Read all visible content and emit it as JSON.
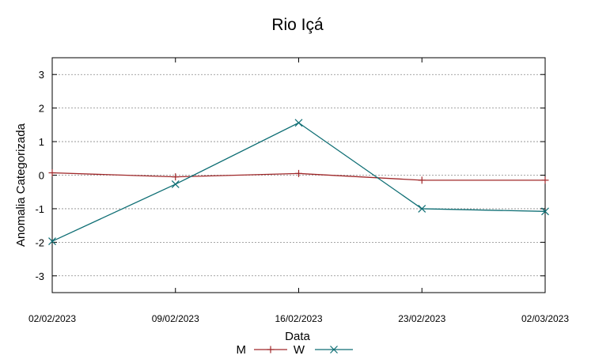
{
  "chart_data": {
    "type": "line",
    "title": "Rio Içá",
    "xlabel": "Data",
    "ylabel": "Anomalia Categorizada",
    "categories": [
      "02/02/2023",
      "09/02/2023",
      "16/02/2023",
      "23/02/2023",
      "02/03/2023"
    ],
    "ylim": [
      -3.5,
      3.5
    ],
    "yticks": [
      "3",
      "2",
      "1",
      "0",
      "-1",
      "-2",
      "-3"
    ],
    "grid": true,
    "legend_position": "bottom",
    "series": [
      {
        "name": "M",
        "values": [
          0.07,
          -0.05,
          0.05,
          -0.15,
          -0.15
        ],
        "color": "#a0282a",
        "marker": "plus"
      },
      {
        "name": "W",
        "values": [
          -1.97,
          -0.27,
          1.56,
          -1.0,
          -1.08
        ],
        "color": "#0e6e74",
        "marker": "x"
      }
    ]
  }
}
